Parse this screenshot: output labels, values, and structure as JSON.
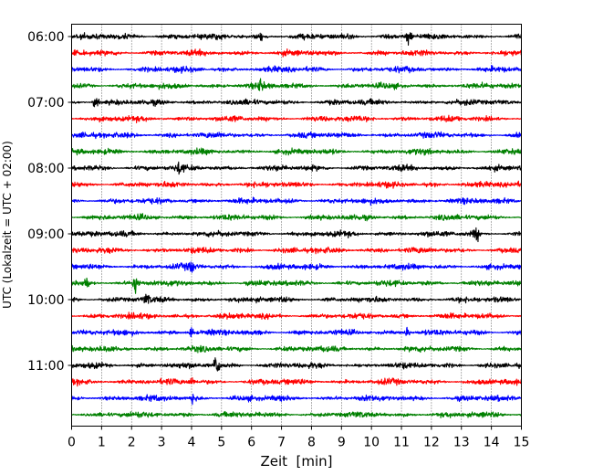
{
  "chart_data": {
    "type": "line",
    "title": "",
    "xlabel": "Zeit  [min]",
    "ylabel": "UTC (Lokalzeit = UTC + 02:00)",
    "xlim": [
      0,
      15
    ],
    "x_ticks": [
      "0",
      "1",
      "2",
      "3",
      "4",
      "5",
      "6",
      "7",
      "8",
      "9",
      "10",
      "11",
      "12",
      "13",
      "14",
      "15"
    ],
    "y_ticks": [
      "06:00",
      "07:00",
      "08:00",
      "09:00",
      "10:00",
      "11:00"
    ],
    "grid": "vertical dotted",
    "legend": "none",
    "trace_interval_minutes": 15,
    "trace_start": "06:00",
    "trace_count": 24,
    "trace_colors": [
      "#000000",
      "#ff0000",
      "#0000ff",
      "#008000"
    ],
    "events": [
      {
        "trace": 0,
        "x": 6.3,
        "amp": 0.25
      },
      {
        "trace": 0,
        "x": 11.25,
        "amp": 0.45
      },
      {
        "trace": 3,
        "x": 6.3,
        "amp": 0.3
      },
      {
        "trace": 4,
        "x": 0.8,
        "amp": 0.3
      },
      {
        "trace": 8,
        "x": 3.6,
        "amp": 0.3
      },
      {
        "trace": 12,
        "x": 13.5,
        "amp": 0.35
      },
      {
        "trace": 14,
        "x": 4.0,
        "amp": 0.3
      },
      {
        "trace": 15,
        "x": 0.5,
        "amp": 0.3
      },
      {
        "trace": 15,
        "x": 2.15,
        "amp": 0.55
      },
      {
        "trace": 16,
        "x": 2.5,
        "amp": 0.25
      },
      {
        "trace": 18,
        "x": 4.0,
        "amp": 0.3
      },
      {
        "trace": 18,
        "x": 11.2,
        "amp": 0.3
      },
      {
        "trace": 20,
        "x": 4.85,
        "amp": 0.7
      },
      {
        "trace": 21,
        "x": 4.0,
        "amp": 0.2
      },
      {
        "trace": 22,
        "x": 4.05,
        "amp": 0.3
      }
    ]
  }
}
